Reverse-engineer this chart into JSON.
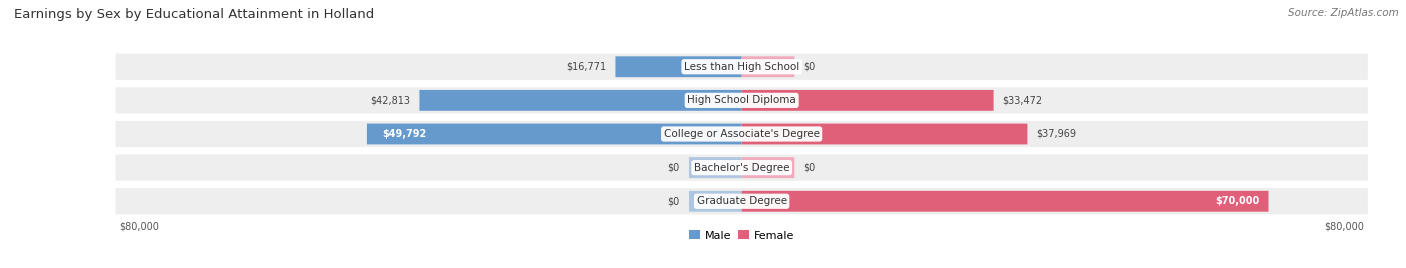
{
  "title": "Earnings by Sex by Educational Attainment in Holland",
  "source": "Source: ZipAtlas.com",
  "categories": [
    "Less than High School",
    "High School Diploma",
    "College or Associate's Degree",
    "Bachelor's Degree",
    "Graduate Degree"
  ],
  "male_values": [
    16771,
    42813,
    49792,
    0,
    0
  ],
  "female_values": [
    0,
    33472,
    37969,
    0,
    70000
  ],
  "male_color_dark": "#6699cc",
  "male_color_light": "#aec6e0",
  "female_color_dark": "#e0607a",
  "female_color_light": "#f0aabb",
  "max_value": 80000,
  "stub_value": 7000,
  "bg_row_color": "#eeeeee",
  "bg_chart_color": "#ffffff",
  "title_fontsize": 9.5,
  "source_fontsize": 7.5,
  "value_fontsize": 7.0,
  "cat_fontsize": 7.5,
  "legend_fontsize": 8.0
}
